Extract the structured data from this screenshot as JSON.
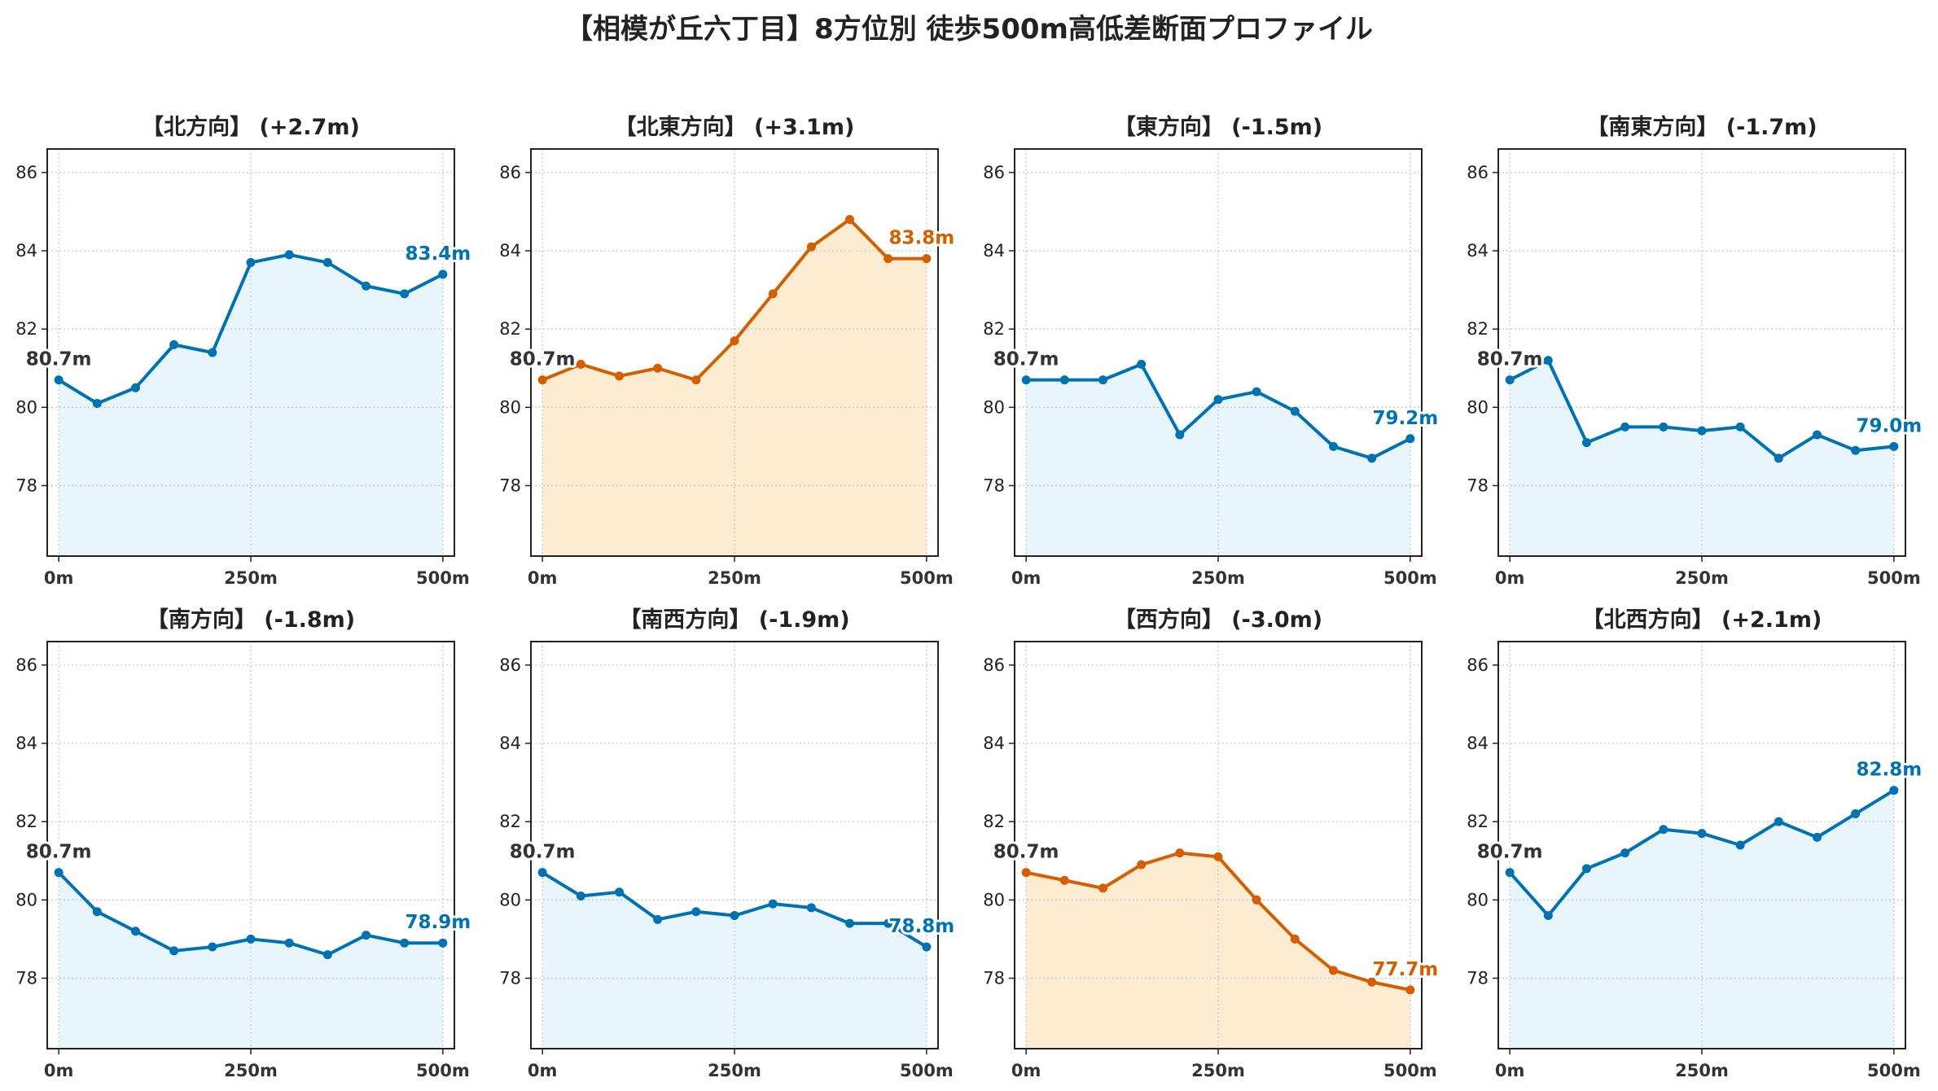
{
  "suptitle": "【相模が丘六丁目】8方位別 徒歩500m高低差断面プロファイル",
  "colors": {
    "up_line": "#0072b2",
    "up_fill": "#e8f5fb",
    "up_label": "#0072b2",
    "down_line": "#d55e00",
    "down_fill": "#fdecd2",
    "down_label": "#d55e00",
    "start_label": "#333333",
    "grid": "#c8c8c8"
  },
  "chart_data": [
    {
      "type": "area",
      "title": "【北方向】 (+2.7m)",
      "style": "up",
      "xticks": [
        "0m",
        "250m",
        "500m"
      ],
      "yticks": [
        78,
        80,
        82,
        84,
        86
      ],
      "ylim": [
        76.2,
        86.6
      ],
      "xlim": [
        -15,
        515
      ],
      "x": [
        0,
        50,
        100,
        150,
        200,
        250,
        300,
        350,
        400,
        450,
        500
      ],
      "values": [
        80.7,
        80.1,
        80.5,
        81.6,
        81.4,
        83.7,
        83.9,
        83.7,
        83.1,
        82.9,
        83.4
      ],
      "start_label": "80.7m",
      "end_label": "83.4m"
    },
    {
      "type": "area",
      "title": "【北東方向】 (+3.1m)",
      "style": "down",
      "xticks": [
        "0m",
        "250m",
        "500m"
      ],
      "yticks": [
        78,
        80,
        82,
        84,
        86
      ],
      "ylim": [
        76.2,
        86.6
      ],
      "xlim": [
        -15,
        515
      ],
      "x": [
        0,
        50,
        100,
        150,
        200,
        250,
        300,
        350,
        400,
        450,
        500
      ],
      "values": [
        80.7,
        81.1,
        80.8,
        81.0,
        80.7,
        81.7,
        82.9,
        84.1,
        84.8,
        83.8,
        83.8
      ],
      "start_label": "80.7m",
      "end_label": "83.8m"
    },
    {
      "type": "area",
      "title": "【東方向】 (-1.5m)",
      "style": "up",
      "xticks": [
        "0m",
        "250m",
        "500m"
      ],
      "yticks": [
        78,
        80,
        82,
        84,
        86
      ],
      "ylim": [
        76.2,
        86.6
      ],
      "xlim": [
        -15,
        515
      ],
      "x": [
        0,
        50,
        100,
        150,
        200,
        250,
        300,
        350,
        400,
        450,
        500
      ],
      "values": [
        80.7,
        80.7,
        80.7,
        81.1,
        79.3,
        80.2,
        80.4,
        79.9,
        79.0,
        78.7,
        79.2
      ],
      "start_label": "80.7m",
      "end_label": "79.2m"
    },
    {
      "type": "area",
      "title": "【南東方向】 (-1.7m)",
      "style": "up",
      "xticks": [
        "0m",
        "250m",
        "500m"
      ],
      "yticks": [
        78,
        80,
        82,
        84,
        86
      ],
      "ylim": [
        76.2,
        86.6
      ],
      "xlim": [
        -15,
        515
      ],
      "x": [
        0,
        50,
        100,
        150,
        200,
        250,
        300,
        350,
        400,
        450,
        500
      ],
      "values": [
        80.7,
        81.2,
        79.1,
        79.5,
        79.5,
        79.4,
        79.5,
        78.7,
        79.3,
        78.9,
        79.0
      ],
      "start_label": "80.7m",
      "end_label": "79.0m"
    },
    {
      "type": "area",
      "title": "【南方向】 (-1.8m)",
      "style": "up",
      "xticks": [
        "0m",
        "250m",
        "500m"
      ],
      "yticks": [
        78,
        80,
        82,
        84,
        86
      ],
      "ylim": [
        76.2,
        86.6
      ],
      "xlim": [
        -15,
        515
      ],
      "x": [
        0,
        50,
        100,
        150,
        200,
        250,
        300,
        350,
        400,
        450,
        500
      ],
      "values": [
        80.7,
        79.7,
        79.2,
        78.7,
        78.8,
        79.0,
        78.9,
        78.6,
        79.1,
        78.9,
        78.9
      ],
      "start_label": "80.7m",
      "end_label": "78.9m"
    },
    {
      "type": "area",
      "title": "【南西方向】 (-1.9m)",
      "style": "up",
      "xticks": [
        "0m",
        "250m",
        "500m"
      ],
      "yticks": [
        78,
        80,
        82,
        84,
        86
      ],
      "ylim": [
        76.2,
        86.6
      ],
      "xlim": [
        -15,
        515
      ],
      "x": [
        0,
        50,
        100,
        150,
        200,
        250,
        300,
        350,
        400,
        450,
        500
      ],
      "values": [
        80.7,
        80.1,
        80.2,
        79.5,
        79.7,
        79.6,
        79.9,
        79.8,
        79.4,
        79.4,
        78.8
      ],
      "start_label": "80.7m",
      "end_label": "78.8m"
    },
    {
      "type": "area",
      "title": "【西方向】 (-3.0m)",
      "style": "down",
      "xticks": [
        "0m",
        "250m",
        "500m"
      ],
      "yticks": [
        78,
        80,
        82,
        84,
        86
      ],
      "ylim": [
        76.2,
        86.6
      ],
      "xlim": [
        -15,
        515
      ],
      "x": [
        0,
        50,
        100,
        150,
        200,
        250,
        300,
        350,
        400,
        450,
        500
      ],
      "values": [
        80.7,
        80.5,
        80.3,
        80.9,
        81.2,
        81.1,
        80.0,
        79.0,
        78.2,
        77.9,
        77.7
      ],
      "start_label": "80.7m",
      "end_label": "77.7m"
    },
    {
      "type": "area",
      "title": "【北西方向】 (+2.1m)",
      "style": "up",
      "xticks": [
        "0m",
        "250m",
        "500m"
      ],
      "yticks": [
        78,
        80,
        82,
        84,
        86
      ],
      "ylim": [
        76.2,
        86.6
      ],
      "xlim": [
        -15,
        515
      ],
      "x": [
        0,
        50,
        100,
        150,
        200,
        250,
        300,
        350,
        400,
        450,
        500
      ],
      "values": [
        80.7,
        79.6,
        80.8,
        81.2,
        81.8,
        81.7,
        81.4,
        82.0,
        81.6,
        82.2,
        82.8
      ],
      "start_label": "80.7m",
      "end_label": "82.8m"
    }
  ]
}
